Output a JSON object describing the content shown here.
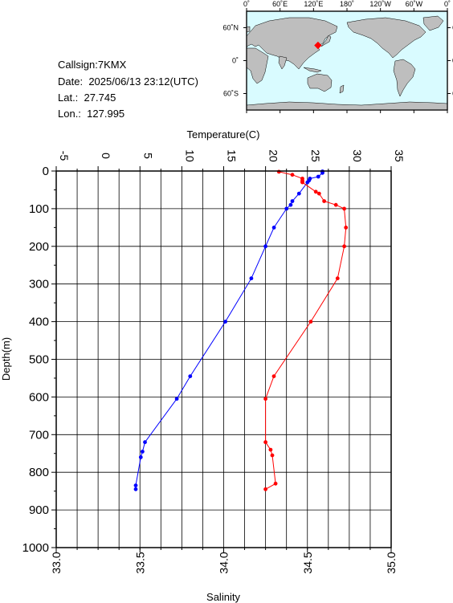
{
  "station": {
    "callsign_label": "Callsign:",
    "callsign": "7KMX",
    "date_label": "Date:",
    "date": "2025/06/13 23:12(UTC)",
    "lat_label": "Lat.:",
    "lat": "27.745",
    "lon_label": "Lon.:",
    "lon": "127.995"
  },
  "map": {
    "lon_ticks": [
      "0˚",
      "60˚E",
      "120˚E",
      "180˚",
      "120˚W",
      "60˚W",
      "0˚"
    ],
    "lat_ticks": [
      "60˚N",
      "0˚",
      "60˚S"
    ],
    "ocean_color": "#d9fbff",
    "land_color": "#bebebe",
    "marker_color": "#ff0000",
    "marker_lon": 127.995,
    "marker_lat": 27.745
  },
  "chart_data": {
    "type": "line",
    "title": "",
    "top_axis_label": "Temperature(C)",
    "bottom_axis_label": "Salinity",
    "ylabel": "Depth(m)",
    "temperature_ticks": [
      "-5",
      "0",
      "5",
      "10",
      "15",
      "20",
      "25",
      "30",
      "35"
    ],
    "salinity_ticks": [
      "33.0",
      "33.5",
      "34.0",
      "34.5",
      "35.0"
    ],
    "depth_ticks": [
      "0",
      "100",
      "200",
      "300",
      "400",
      "500",
      "600",
      "700",
      "800",
      "900",
      "1000"
    ],
    "temperature_range": [
      -5,
      35
    ],
    "salinity_range": [
      33.0,
      35.0
    ],
    "depth_range": [
      0,
      1000
    ],
    "grid": true,
    "series": [
      {
        "name": "Temperature",
        "axis": "top",
        "color": "#0000ff",
        "depth": [
          1,
          5,
          15,
          20,
          25,
          30,
          60,
          80,
          90,
          100,
          150,
          200,
          285,
          400,
          545,
          605,
          720,
          745,
          760,
          835,
          845
        ],
        "values": [
          26.8,
          26.8,
          26.3,
          25.3,
          25.2,
          25.0,
          24.0,
          23.2,
          23.0,
          22.5,
          21.0,
          20.0,
          18.3,
          15.2,
          11.0,
          9.4,
          5.6,
          5.3,
          5.1,
          4.5,
          4.5
        ]
      },
      {
        "name": "Salinity",
        "axis": "bottom",
        "color": "#ff0000",
        "depth": [
          2,
          10,
          20,
          25,
          28,
          30,
          55,
          60,
          80,
          90,
          100,
          150,
          200,
          285,
          400,
          545,
          605,
          720,
          740,
          755,
          830,
          845
        ],
        "values": [
          34.33,
          34.41,
          34.47,
          34.47,
          34.47,
          34.47,
          34.55,
          34.57,
          34.6,
          34.67,
          34.72,
          34.73,
          34.72,
          34.68,
          34.52,
          34.3,
          34.25,
          34.25,
          34.28,
          34.29,
          34.31,
          34.25
        ]
      }
    ]
  }
}
